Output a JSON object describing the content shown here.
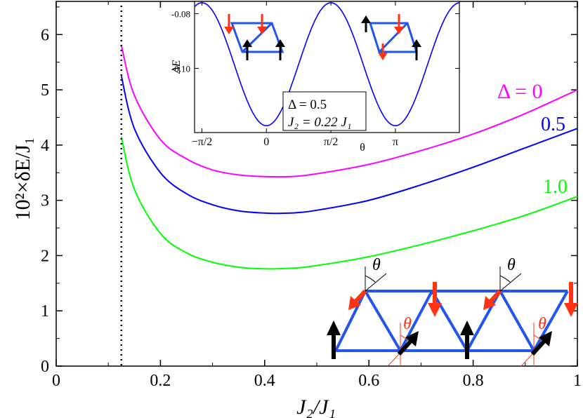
{
  "colors": {
    "delta0": "#ff00ff",
    "delta05": "#0000ff",
    "delta1": "#00ff00",
    "lattice": "#2255ee",
    "arrow_red": "#ff3311",
    "arrow_black": "#000000"
  },
  "chart_data": [
    {
      "type": "line",
      "ylabel": "10²×δE/J₁",
      "xlabel": "J₂/J₁",
      "xlim": [
        0,
        1
      ],
      "ylim": [
        0,
        6.6
      ],
      "x_ticks": [
        "0",
        "0.2",
        "0.4",
        "0.6",
        "0.8",
        "1"
      ],
      "y_ticks": [
        "0",
        "1",
        "2",
        "3",
        "4",
        "5",
        "6"
      ],
      "grid": false,
      "vline_x": 0.125,
      "series": [
        {
          "name": "Δ = 0",
          "x": [
            0.125,
            0.15,
            0.2,
            0.25,
            0.3,
            0.35,
            0.4,
            0.45,
            0.5,
            0.6,
            0.7,
            0.8,
            0.9,
            1.0
          ],
          "values": [
            5.8,
            4.9,
            4.1,
            3.75,
            3.55,
            3.46,
            3.43,
            3.43,
            3.48,
            3.65,
            3.9,
            4.2,
            4.57,
            5.0
          ]
        },
        {
          "name": "0.5",
          "x": [
            0.125,
            0.15,
            0.2,
            0.25,
            0.3,
            0.35,
            0.4,
            0.45,
            0.5,
            0.6,
            0.7,
            0.8,
            0.9,
            1.0
          ],
          "values": [
            5.25,
            4.3,
            3.5,
            3.12,
            2.92,
            2.81,
            2.77,
            2.77,
            2.82,
            3.0,
            3.28,
            3.6,
            3.95,
            4.3
          ]
        },
        {
          "name": "1.0",
          "x": [
            0.125,
            0.15,
            0.2,
            0.25,
            0.3,
            0.35,
            0.4,
            0.45,
            0.5,
            0.6,
            0.7,
            0.8,
            0.9,
            1.0
          ],
          "values": [
            4.15,
            3.2,
            2.4,
            2.05,
            1.88,
            1.79,
            1.76,
            1.77,
            1.82,
            1.98,
            2.2,
            2.45,
            2.73,
            3.07
          ]
        }
      ]
    },
    {
      "type": "line",
      "ylabel": "ΔE",
      "xlabel": "θ",
      "x_ticks": [
        "−π/2",
        "0",
        "π/2",
        "π"
      ],
      "y_ticks": [
        "-0.08",
        "-0.10"
      ],
      "xlim": [
        -1.75,
        4.7
      ],
      "ylim": [
        -0.1235,
        -0.0755
      ],
      "legend_lines": [
        "Δ = 0.5",
        "J₂ = 0.22 J₁"
      ],
      "series": [
        {
          "name": "",
          "amplitude": 0.0225,
          "offset": -0.0985,
          "period": 3.14159
        }
      ]
    }
  ],
  "annotations": {
    "theta": "θ"
  }
}
